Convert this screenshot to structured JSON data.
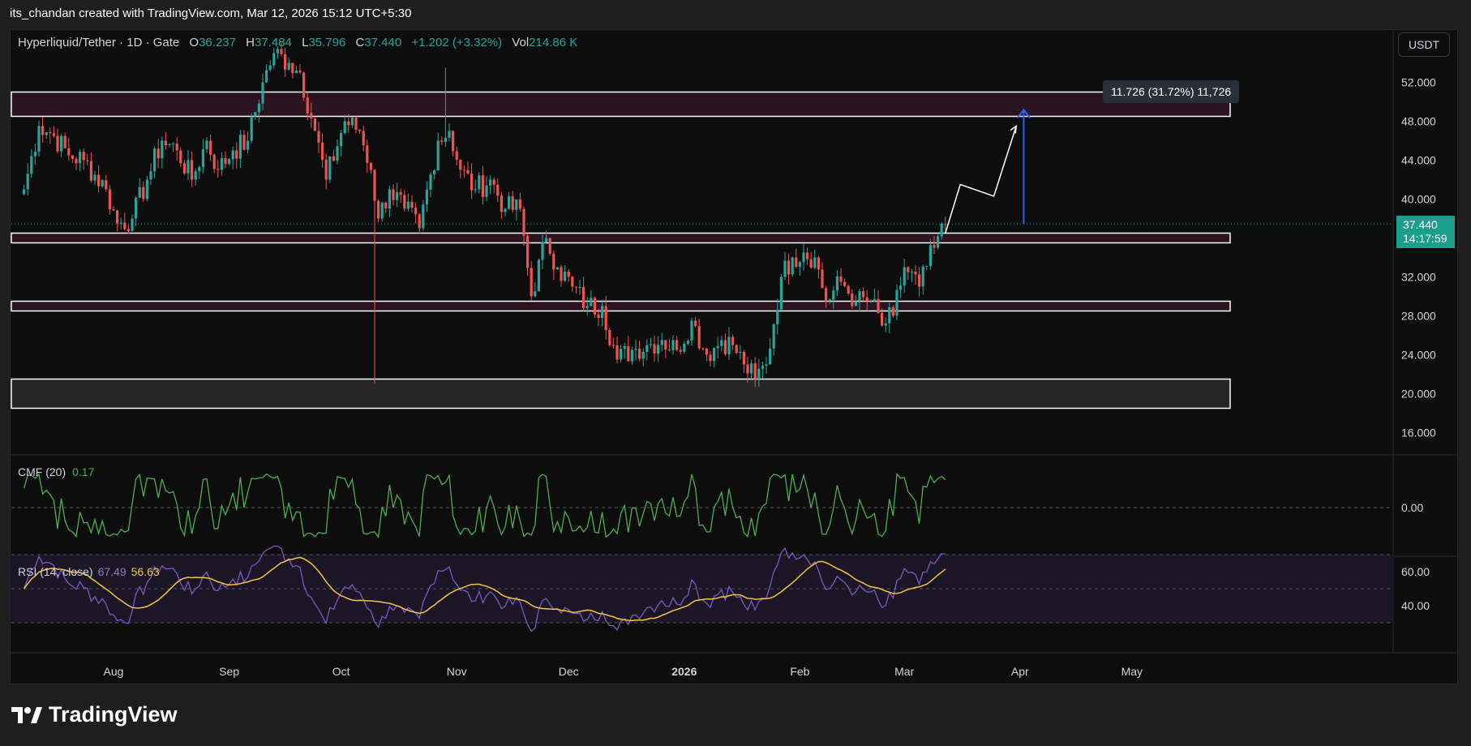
{
  "top_caption": "its_chandan created with TradingView.com, Mar 12, 2026 15:12 UTC+5:30",
  "header": {
    "symbol": "Hyperliquid/Tether · 1D · Gate",
    "o_label": "O",
    "o_value": "36.237",
    "h_label": "H",
    "h_value": "37.484",
    "l_label": "L",
    "l_value": "35.796",
    "c_label": "C",
    "c_value": "37.440",
    "change": "+1.202 (+3.32%)",
    "vol_label": "Vol",
    "vol_value": "214.86 K"
  },
  "currency_button": "USDT",
  "price_tag": {
    "price": "37.440",
    "countdown": "14:17:59"
  },
  "measure_label": "11.726 (31.72%) 11,726",
  "cmf": {
    "label": "CMF (20)",
    "value": "0.17"
  },
  "rsi": {
    "label": "RSI (14, close)",
    "value": "67.49",
    "ma_value": "56.63"
  },
  "logo_text": "TradingView",
  "colors": {
    "up": "#26a69a",
    "down": "#ef5350",
    "cmf": "#4caf50",
    "rsi": "#7e57c2",
    "rsi_ma": "#f6c444",
    "measure": "#2962ff"
  },
  "chart_data": {
    "type": "candlestick",
    "title": "Hyperliquid/Tether · 1D · Gate",
    "x_ticks": [
      "Aug",
      "Sep",
      "Oct",
      "Nov",
      "Dec",
      "2026",
      "Feb",
      "Mar",
      "Apr",
      "May"
    ],
    "y_ticks": [
      "52.000",
      "48.000",
      "44.000",
      "40.000",
      "32.000",
      "28.000",
      "24.000",
      "20.000",
      "16.000"
    ],
    "ylim": [
      13,
      56
    ],
    "cmf_ticks": [
      "0.00"
    ],
    "rsi_ticks": [
      "60.00",
      "40.00"
    ],
    "close_points": [
      {
        "x": "2025-07-08",
        "y": 41
      },
      {
        "x": "2025-07-12",
        "y": 47.5
      },
      {
        "x": "2025-07-16",
        "y": 46.5
      },
      {
        "x": "2025-07-20",
        "y": 44.5
      },
      {
        "x": "2025-07-24",
        "y": 44
      },
      {
        "x": "2025-07-30",
        "y": 41
      },
      {
        "x": "2025-08-02",
        "y": 37.5
      },
      {
        "x": "2025-08-06",
        "y": 38
      },
      {
        "x": "2025-08-10",
        "y": 42
      },
      {
        "x": "2025-08-14",
        "y": 46
      },
      {
        "x": "2025-08-18",
        "y": 45
      },
      {
        "x": "2025-08-22",
        "y": 42
      },
      {
        "x": "2025-08-26",
        "y": 46
      },
      {
        "x": "2025-08-29",
        "y": 43
      },
      {
        "x": "2025-09-02",
        "y": 45
      },
      {
        "x": "2025-09-06",
        "y": 46
      },
      {
        "x": "2025-09-10",
        "y": 52
      },
      {
        "x": "2025-09-13",
        "y": 55
      },
      {
        "x": "2025-09-17",
        "y": 54
      },
      {
        "x": "2025-09-20",
        "y": 53
      },
      {
        "x": "2025-09-24",
        "y": 47
      },
      {
        "x": "2025-09-27",
        "y": 42
      },
      {
        "x": "2025-10-02",
        "y": 48
      },
      {
        "x": "2025-10-06",
        "y": 47
      },
      {
        "x": "2025-10-09",
        "y": 43
      },
      {
        "x": "2025-10-11",
        "y": 38
      },
      {
        "x": "2025-10-14",
        "y": 41
      },
      {
        "x": "2025-10-18",
        "y": 39
      },
      {
        "x": "2025-10-22",
        "y": 37
      },
      {
        "x": "2025-10-27",
        "y": 46
      },
      {
        "x": "2025-10-30",
        "y": 47
      },
      {
        "x": "2025-11-02",
        "y": 43
      },
      {
        "x": "2025-11-06",
        "y": 41
      },
      {
        "x": "2025-11-10",
        "y": 42
      },
      {
        "x": "2025-11-14",
        "y": 39
      },
      {
        "x": "2025-11-18",
        "y": 39
      },
      {
        "x": "2025-11-21",
        "y": 30
      },
      {
        "x": "2025-11-25",
        "y": 36
      },
      {
        "x": "2025-11-28",
        "y": 33
      },
      {
        "x": "2025-12-02",
        "y": 31
      },
      {
        "x": "2025-12-06",
        "y": 29
      },
      {
        "x": "2025-12-10",
        "y": 29
      },
      {
        "x": "2025-12-14",
        "y": 23.5
      },
      {
        "x": "2025-12-18",
        "y": 24.5
      },
      {
        "x": "2025-12-22",
        "y": 25
      },
      {
        "x": "2025-12-26",
        "y": 25.5
      },
      {
        "x": "2025-12-30",
        "y": 24.5
      },
      {
        "x": "2026-01-03",
        "y": 27.5
      },
      {
        "x": "2026-01-07",
        "y": 24
      },
      {
        "x": "2026-01-11",
        "y": 25.5
      },
      {
        "x": "2026-01-14",
        "y": 25
      },
      {
        "x": "2026-01-17",
        "y": 23
      },
      {
        "x": "2026-01-20",
        "y": 21.5
      },
      {
        "x": "2026-01-23",
        "y": 23
      },
      {
        "x": "2026-01-27",
        "y": 32
      },
      {
        "x": "2026-01-30",
        "y": 34
      },
      {
        "x": "2026-02-02",
        "y": 34.5
      },
      {
        "x": "2026-02-05",
        "y": 34
      },
      {
        "x": "2026-02-08",
        "y": 29.5
      },
      {
        "x": "2026-02-12",
        "y": 31.5
      },
      {
        "x": "2026-02-16",
        "y": 29.5
      },
      {
        "x": "2026-02-20",
        "y": 29.5
      },
      {
        "x": "2026-02-23",
        "y": 27
      },
      {
        "x": "2026-02-26",
        "y": 28
      },
      {
        "x": "2026-03-01",
        "y": 33
      },
      {
        "x": "2026-03-05",
        "y": 31
      },
      {
        "x": "2026-03-09",
        "y": 35
      },
      {
        "x": "2026-03-12",
        "y": 37.44
      }
    ],
    "zones": [
      {
        "from": 48.5,
        "to": 51
      },
      {
        "from": 35.5,
        "to": 36.5
      },
      {
        "from": 28.5,
        "to": 29.5
      },
      {
        "from": 18.5,
        "to": 21.5
      }
    ],
    "projection": [
      {
        "x": "2026-03-12",
        "y": 36.5
      },
      {
        "x": "2026-03-16",
        "y": 41.5
      },
      {
        "x": "2026-03-25",
        "y": 40.3
      },
      {
        "x": "2026-03-31",
        "y": 47.5
      }
    ],
    "measure": {
      "x": "2026-04-02",
      "from": 37.44,
      "to": 49.17
    }
  }
}
